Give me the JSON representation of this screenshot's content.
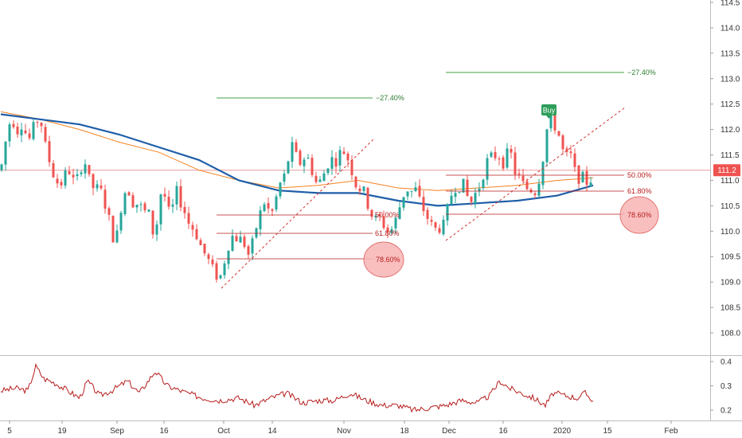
{
  "chart_data": {
    "type": "candlestick",
    "price_axis": {
      "ticks": [
        "108.0",
        "108.5",
        "109.0",
        "109.5",
        "110.0",
        "110.5",
        "111.0",
        "111.5",
        "112.0",
        "112.5",
        "113.0",
        "113.5",
        "114.0",
        "114.5"
      ],
      "range": [
        107.7,
        114.55
      ],
      "current_price_label": "111.2",
      "current_price": 111.2
    },
    "time_axis": {
      "labels": [
        "5",
        "19",
        "Sep",
        "16",
        "Oct",
        "14",
        "Nov",
        "18",
        "Dec",
        "16",
        "2020",
        "15",
        "Feb"
      ]
    },
    "price_path": [
      [
        1,
        111.2
      ],
      [
        5,
        111.6
      ],
      [
        10,
        112.0
      ],
      [
        15,
        112.3
      ],
      [
        20,
        111.9
      ],
      [
        25,
        112.1
      ],
      [
        30,
        112.1
      ],
      [
        35,
        111.7
      ],
      [
        40,
        112.0
      ],
      [
        45,
        112.1
      ],
      [
        50,
        112.3
      ],
      [
        55,
        111.8
      ],
      [
        60,
        111.5
      ],
      [
        65,
        111.2
      ],
      [
        70,
        111.0
      ],
      [
        75,
        110.9
      ],
      [
        80,
        111.0
      ],
      [
        85,
        111.3
      ],
      [
        90,
        111.0
      ],
      [
        95,
        111.0
      ],
      [
        100,
        111.1
      ],
      [
        105,
        111.5
      ],
      [
        110,
        111.1
      ],
      [
        115,
        110.9
      ],
      [
        120,
        110.8
      ],
      [
        125,
        110.9
      ],
      [
        130,
        110.6
      ],
      [
        135,
        110.4
      ],
      [
        140,
        110.0
      ],
      [
        145,
        109.7
      ],
      [
        150,
        110.3
      ],
      [
        155,
        110.7
      ],
      [
        160,
        110.9
      ],
      [
        165,
        110.6
      ],
      [
        170,
        110.5
      ],
      [
        175,
        110.6
      ],
      [
        180,
        110.3
      ],
      [
        185,
        110.5
      ],
      [
        190,
        110.1
      ],
      [
        195,
        109.8
      ],
      [
        200,
        110.7
      ],
      [
        205,
        110.8
      ],
      [
        210,
        110.5
      ],
      [
        215,
        110.2
      ],
      [
        220,
        110.9
      ],
      [
        225,
        110.6
      ],
      [
        230,
        110.5
      ],
      [
        235,
        110.2
      ],
      [
        240,
        110.1
      ],
      [
        245,
        110.0
      ],
      [
        250,
        109.8
      ],
      [
        255,
        109.6
      ],
      [
        260,
        109.5
      ],
      [
        265,
        109.3
      ],
      [
        270,
        109.2
      ],
      [
        275,
        109.0
      ],
      [
        280,
        109.3
      ],
      [
        285,
        109.6
      ],
      [
        290,
        109.9
      ],
      [
        295,
        109.9
      ],
      [
        300,
        109.8
      ],
      [
        305,
        109.9
      ],
      [
        310,
        109.5
      ],
      [
        315,
        109.6
      ],
      [
        320,
        110.0
      ],
      [
        325,
        110.2
      ],
      [
        330,
        110.6
      ],
      [
        335,
        110.5
      ],
      [
        340,
        110.3
      ],
      [
        345,
        110.5
      ],
      [
        350,
        110.9
      ],
      [
        355,
        111.0
      ],
      [
        360,
        111.2
      ],
      [
        365,
        111.7
      ],
      [
        370,
        111.6
      ],
      [
        375,
        111.3
      ],
      [
        380,
        111.4
      ],
      [
        385,
        111.5
      ],
      [
        390,
        111.3
      ],
      [
        395,
        111.0
      ],
      [
        400,
        110.9
      ],
      [
        405,
        111.1
      ],
      [
        410,
        111.2
      ],
      [
        415,
        111.5
      ],
      [
        420,
        111.3
      ],
      [
        425,
        111.5
      ],
      [
        430,
        111.6
      ],
      [
        435,
        111.5
      ],
      [
        440,
        111.3
      ],
      [
        445,
        111.0
      ],
      [
        450,
        110.8
      ],
      [
        455,
        110.9
      ],
      [
        460,
        110.6
      ],
      [
        465,
        110.4
      ],
      [
        470,
        110.2
      ],
      [
        475,
        110.3
      ],
      [
        480,
        110.2
      ],
      [
        485,
        110.0
      ],
      [
        490,
        110.0
      ],
      [
        495,
        110.1
      ],
      [
        500,
        110.4
      ],
      [
        505,
        110.6
      ],
      [
        510,
        110.9
      ],
      [
        515,
        110.7
      ],
      [
        520,
        110.9
      ],
      [
        525,
        110.7
      ],
      [
        530,
        110.5
      ],
      [
        535,
        110.3
      ],
      [
        540,
        110.2
      ],
      [
        545,
        110.0
      ],
      [
        550,
        110.1
      ],
      [
        555,
        110.0
      ],
      [
        560,
        110.3
      ],
      [
        565,
        110.6
      ],
      [
        570,
        110.9
      ],
      [
        575,
        110.8
      ],
      [
        580,
        111.0
      ],
      [
        585,
        110.8
      ],
      [
        590,
        110.5
      ],
      [
        595,
        110.7
      ],
      [
        600,
        110.8
      ],
      [
        605,
        111.0
      ],
      [
        610,
        111.3
      ],
      [
        615,
        111.5
      ],
      [
        620,
        111.4
      ],
      [
        625,
        111.6
      ],
      [
        630,
        111.3
      ],
      [
        635,
        111.4
      ],
      [
        640,
        111.7
      ],
      [
        645,
        111.2
      ],
      [
        650,
        111.1
      ],
      [
        655,
        111.0
      ],
      [
        660,
        110.8
      ],
      [
        665,
        110.9
      ],
      [
        670,
        110.7
      ],
      [
        675,
        110.9
      ],
      [
        680,
        111.2
      ],
      [
        685,
        111.8
      ],
      [
        690,
        112.3
      ],
      [
        695,
        112.1
      ],
      [
        700,
        112.0
      ],
      [
        705,
        111.7
      ],
      [
        710,
        111.4
      ],
      [
        715,
        111.6
      ],
      [
        720,
        111.3
      ],
      [
        725,
        111.0
      ],
      [
        730,
        111.1
      ],
      [
        735,
        111.0
      ],
      [
        740,
        110.9
      ],
      [
        745,
        111.2
      ]
    ],
    "rsi_path": [
      [
        1,
        0.28
      ],
      [
        20,
        0.29
      ],
      [
        35,
        0.28
      ],
      [
        45,
        0.38
      ],
      [
        55,
        0.33
      ],
      [
        70,
        0.31
      ],
      [
        85,
        0.28
      ],
      [
        100,
        0.25
      ],
      [
        110,
        0.32
      ],
      [
        125,
        0.26
      ],
      [
        140,
        0.28
      ],
      [
        160,
        0.32
      ],
      [
        175,
        0.27
      ],
      [
        195,
        0.36
      ],
      [
        210,
        0.3
      ],
      [
        235,
        0.27
      ],
      [
        255,
        0.25
      ],
      [
        275,
        0.24
      ],
      [
        300,
        0.25
      ],
      [
        320,
        0.22
      ],
      [
        340,
        0.25
      ],
      [
        360,
        0.27
      ],
      [
        380,
        0.23
      ],
      [
        400,
        0.24
      ],
      [
        420,
        0.24
      ],
      [
        440,
        0.27
      ],
      [
        460,
        0.24
      ],
      [
        480,
        0.22
      ],
      [
        500,
        0.22
      ],
      [
        520,
        0.2
      ],
      [
        540,
        0.21
      ],
      [
        560,
        0.22
      ],
      [
        580,
        0.24
      ],
      [
        600,
        0.23
      ],
      [
        615,
        0.26
      ],
      [
        628,
        0.32
      ],
      [
        640,
        0.29
      ],
      [
        655,
        0.27
      ],
      [
        670,
        0.25
      ],
      [
        685,
        0.22
      ],
      [
        695,
        0.27
      ],
      [
        710,
        0.26
      ],
      [
        725,
        0.25
      ],
      [
        735,
        0.27
      ],
      [
        745,
        0.24
      ]
    ],
    "rsi_axis": {
      "ticks": [
        "0.2",
        "0.3",
        "0.4"
      ],
      "range": [
        0.17,
        0.43
      ]
    },
    "series": [
      {
        "name": "",
        "color": "#1f5ea8",
        "values": [
          [
            1,
            112.3
          ],
          [
            50,
            112.2
          ],
          [
            100,
            112.1
          ],
          [
            150,
            111.9
          ],
          [
            200,
            111.65
          ],
          [
            250,
            111.4
          ],
          [
            300,
            111.0
          ],
          [
            350,
            110.8
          ],
          [
            400,
            110.75
          ],
          [
            450,
            110.75
          ],
          [
            500,
            110.6
          ],
          [
            550,
            110.5
          ],
          [
            600,
            110.55
          ],
          [
            650,
            110.6
          ],
          [
            700,
            110.7
          ],
          [
            745,
            110.9
          ]
        ]
      },
      {
        "name": "",
        "color": "#f58220",
        "values": [
          [
            1,
            112.35
          ],
          [
            50,
            112.2
          ],
          [
            100,
            112.0
          ],
          [
            150,
            111.75
          ],
          [
            200,
            111.55
          ],
          [
            250,
            111.2
          ],
          [
            300,
            111.0
          ],
          [
            350,
            110.85
          ],
          [
            400,
            110.9
          ],
          [
            450,
            111.0
          ],
          [
            500,
            110.85
          ],
          [
            550,
            110.8
          ],
          [
            600,
            110.85
          ],
          [
            650,
            110.9
          ],
          [
            700,
            111.0
          ],
          [
            745,
            111.05
          ]
        ]
      }
    ],
    "annotations": {
      "projection_label": "−27.40%",
      "fib_labels": [
        "50.00%",
        "61.80%",
        "78.60%"
      ],
      "signal_label": "Buy"
    },
    "colors": {
      "up": "#26a69a",
      "down": "#ef5350",
      "fib_line": "#b71c1c",
      "projection_line": "#43a047",
      "rsi_line": "#b71c1c",
      "trend_line": "#d32f2f",
      "circle_fill": "#f8b4b4",
      "buy_badge": "#2e9e5b",
      "price_line": "#ef9a9a"
    }
  },
  "ui": {
    "projection_1": "−27.40%",
    "projection_2": "−27.40%",
    "fib_a_50": "50.00%",
    "fib_a_618": "61.80%",
    "fib_a_786": "78.60%",
    "fib_b_50": "50.00%",
    "fib_b_618": "61.80%",
    "fib_b_786": "78.60%",
    "buy": "Buy",
    "price_tag": "111.2"
  }
}
